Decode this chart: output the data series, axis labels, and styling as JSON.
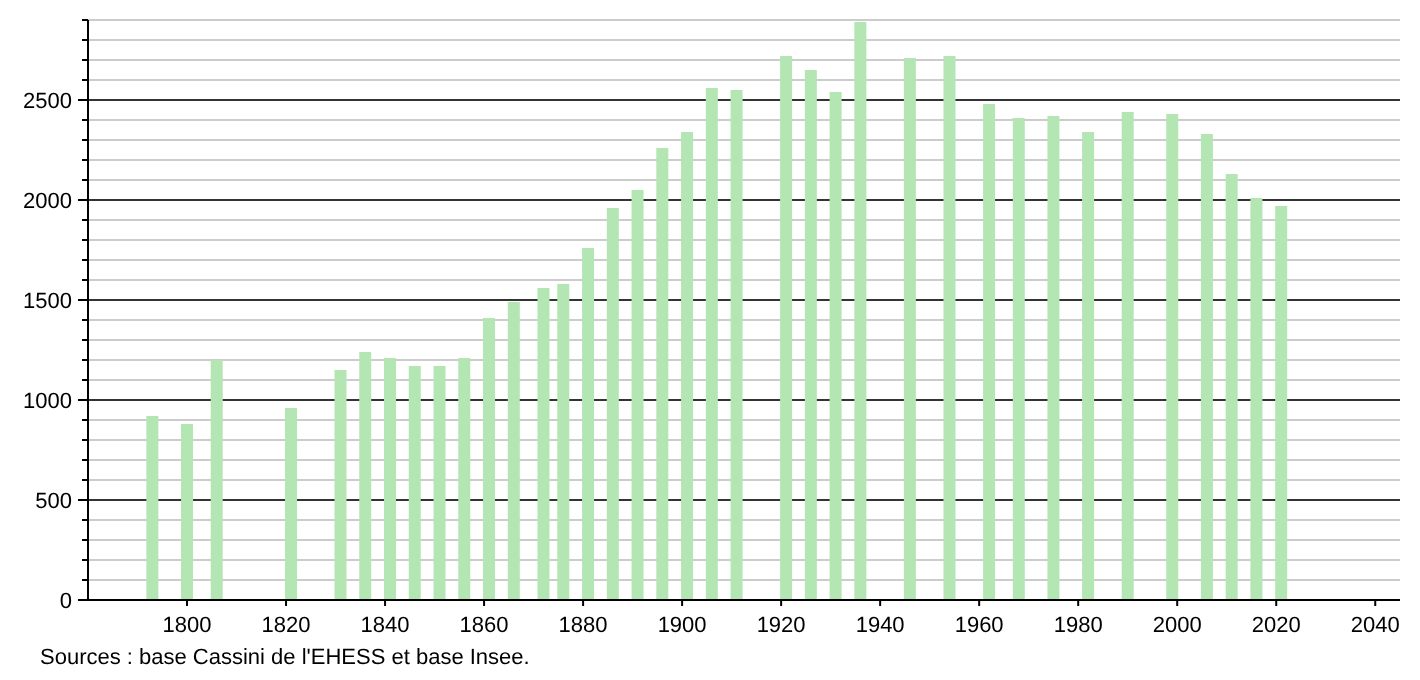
{
  "chart_data": {
    "type": "bar",
    "x": [
      1793,
      1800,
      1806,
      1821,
      1831,
      1836,
      1841,
      1846,
      1851,
      1856,
      1861,
      1866,
      1872,
      1876,
      1881,
      1886,
      1891,
      1896,
      1901,
      1906,
      1911,
      1921,
      1926,
      1931,
      1936,
      1946,
      1954,
      1962,
      1968,
      1975,
      1982,
      1990,
      1999,
      2006,
      2011,
      2016,
      2021
    ],
    "values": [
      920,
      880,
      1200,
      960,
      1150,
      1240,
      1210,
      1170,
      1170,
      1210,
      1410,
      1490,
      1560,
      1580,
      1760,
      1960,
      2050,
      2260,
      2340,
      2560,
      2550,
      2720,
      2650,
      2540,
      2890,
      2710,
      2720,
      2480,
      2410,
      2420,
      2340,
      2440,
      2430,
      2330,
      2130,
      2010,
      1970
    ],
    "color": "#b3e6b3",
    "xlim": [
      1780,
      2045
    ],
    "xticks": [
      1800,
      1820,
      1840,
      1860,
      1880,
      1900,
      1920,
      1940,
      1960,
      1980,
      2000,
      2020,
      2040
    ],
    "ylim": [
      0,
      2900
    ],
    "yticks": [
      0,
      {
        "value": 100,
        "label": null
      },
      {
        "value": 200,
        "label": null
      },
      {
        "value": 300,
        "label": null
      },
      {
        "value": 400,
        "label": null
      },
      500,
      {
        "value": 600,
        "label": null
      },
      {
        "value": 700,
        "label": null
      },
      {
        "value": 800,
        "label": null
      },
      {
        "value": 900,
        "label": null
      },
      1000,
      {
        "value": 1100,
        "label": null
      },
      {
        "value": 1200,
        "label": null
      },
      {
        "value": 1300,
        "label": null
      },
      {
        "value": 1400,
        "label": null
      },
      1500,
      {
        "value": 1600,
        "label": null
      },
      {
        "value": 1700,
        "label": null
      },
      {
        "value": 1800,
        "label": null
      },
      {
        "value": 1900,
        "label": null
      },
      2000,
      {
        "value": 2100,
        "label": null
      },
      {
        "value": 2200,
        "label": null
      },
      {
        "value": 2300,
        "label": null
      },
      {
        "value": 2400,
        "label": null
      },
      2500,
      {
        "value": 2600,
        "label": null
      },
      {
        "value": 2700,
        "label": null
      },
      {
        "value": 2800,
        "label": null
      },
      {
        "value": 2900,
        "label": null
      }
    ],
    "grid": "y",
    "annotations": [
      "Sources : base Cassini de l'EHESS et base Insee."
    ]
  }
}
